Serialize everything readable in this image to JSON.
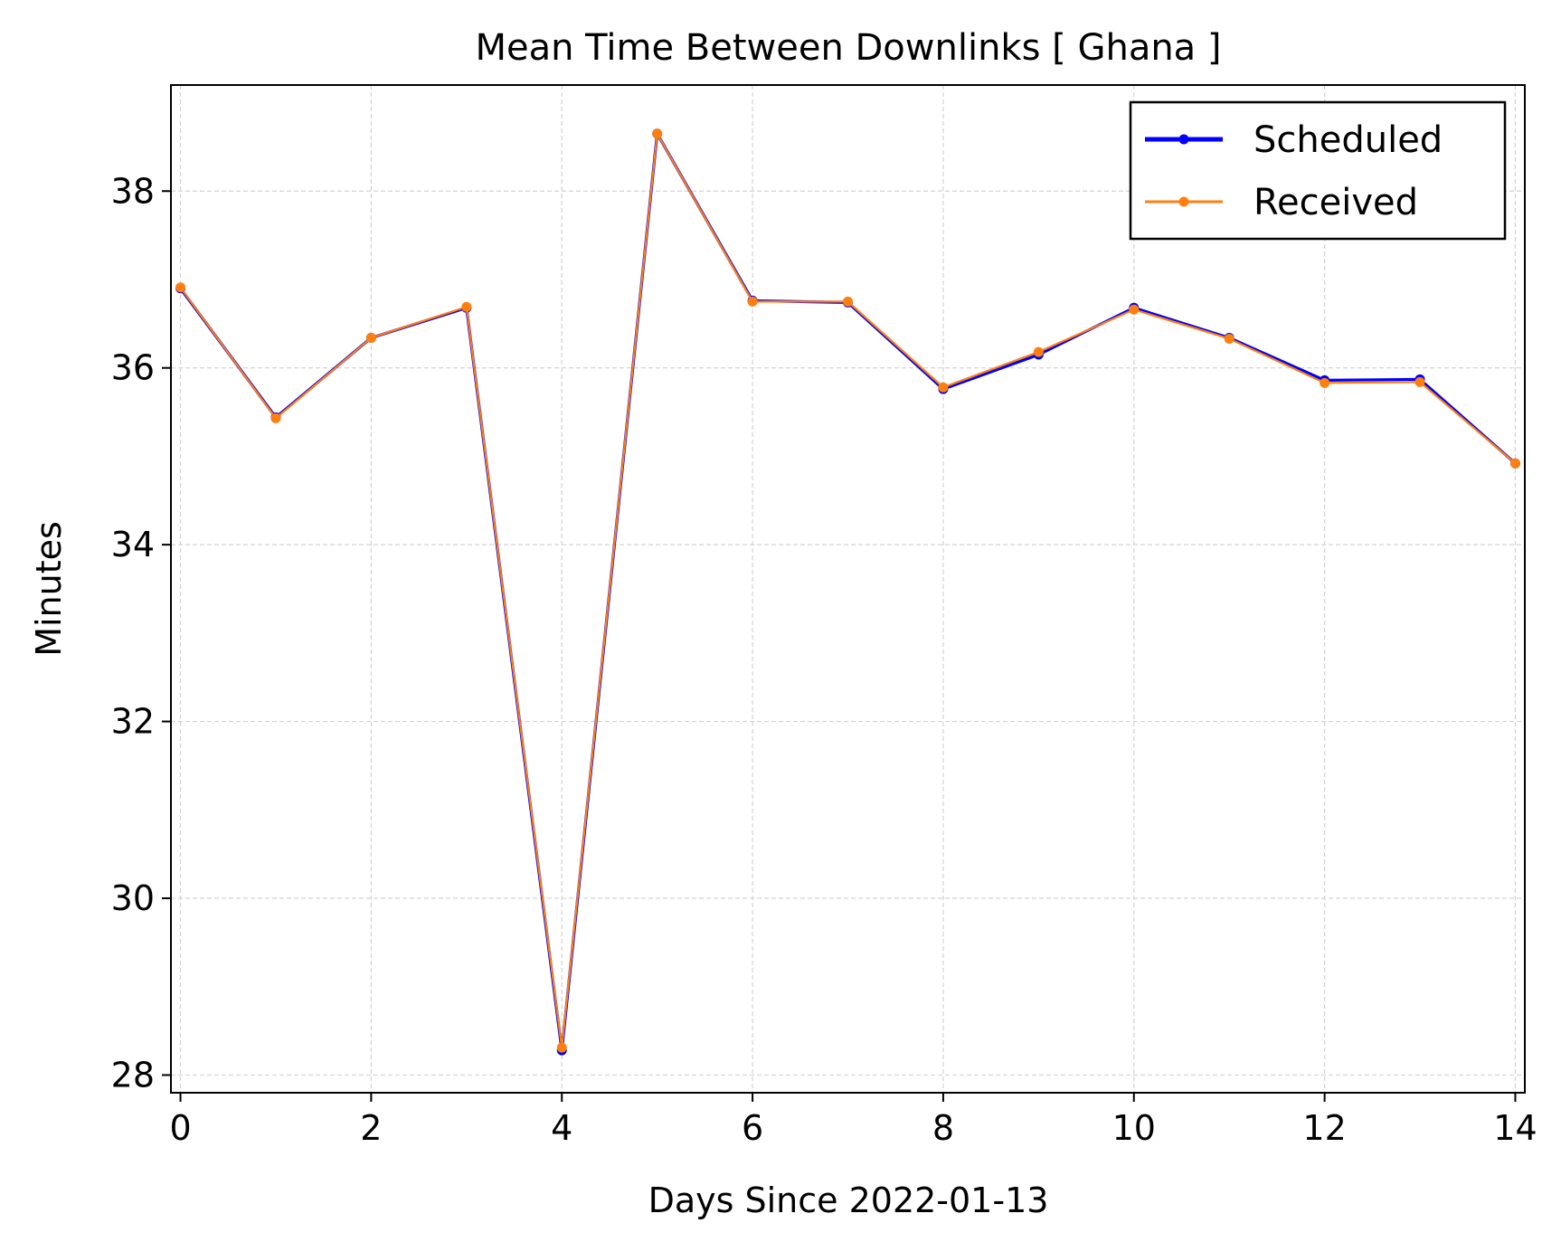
{
  "chart_data": {
    "type": "line",
    "title": "Mean Time Between Downlinks [ Ghana ]",
    "xlabel": "Days Since 2022-01-13",
    "ylabel": "Minutes",
    "x": [
      0,
      1,
      2,
      3,
      4,
      5,
      6,
      7,
      8,
      9,
      10,
      11,
      12,
      13,
      14
    ],
    "xlim": [
      -0.1,
      14.1
    ],
    "ylim": [
      27.8,
      39.2
    ],
    "xticks": [
      0,
      2,
      4,
      6,
      8,
      10,
      12,
      14
    ],
    "yticks": [
      28,
      30,
      32,
      34,
      36,
      38
    ],
    "grid": true,
    "legend_position": "top-right",
    "series": [
      {
        "name": "Scheduled",
        "color": "#0000ff",
        "values": [
          36.9,
          35.44,
          36.34,
          36.68,
          28.28,
          38.65,
          36.76,
          36.74,
          35.76,
          36.15,
          36.68,
          36.34,
          35.86,
          35.87,
          34.92
        ]
      },
      {
        "name": "Received",
        "color": "#ff7f0e",
        "values": [
          36.91,
          35.43,
          36.34,
          36.69,
          28.31,
          38.65,
          36.75,
          36.75,
          35.78,
          36.18,
          36.66,
          36.33,
          35.83,
          35.84,
          34.92
        ]
      }
    ]
  }
}
